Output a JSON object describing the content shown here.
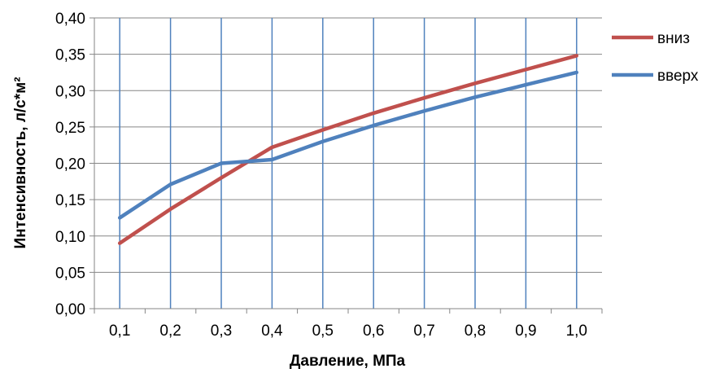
{
  "chart_data": {
    "type": "line",
    "title": "",
    "xlabel": "Давление, МПа",
    "ylabel": "Интенсивность, л/с*м²",
    "x": [
      "0,1",
      "0,2",
      "0,3",
      "0,4",
      "0,5",
      "0,6",
      "0,7",
      "0,8",
      "0,9",
      "1,0"
    ],
    "x_values": [
      0.1,
      0.2,
      0.3,
      0.4,
      0.5,
      0.6,
      0.7,
      0.8,
      0.9,
      1.0
    ],
    "y_ticks": [
      "0,00",
      "0,05",
      "0,10",
      "0,15",
      "0,20",
      "0,25",
      "0,30",
      "0,35",
      "0,40"
    ],
    "ylim": [
      0,
      0.4
    ],
    "grid": true,
    "legend_position": "right",
    "series": [
      {
        "name": "вниз",
        "color": "#c0504d",
        "values": [
          0.09,
          0.137,
          0.18,
          0.222,
          0.246,
          0.269,
          0.29,
          0.31,
          0.329,
          0.348
        ]
      },
      {
        "name": "вверх",
        "color": "#4f81bd",
        "values": [
          0.125,
          0.171,
          0.2,
          0.205,
          0.23,
          0.252,
          0.272,
          0.291,
          0.308,
          0.325
        ]
      }
    ],
    "grid_color": "#4f81bd"
  }
}
